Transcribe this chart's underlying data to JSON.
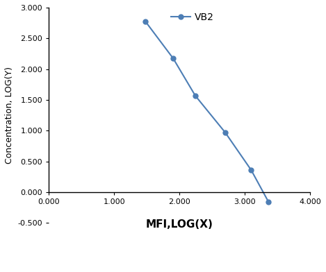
{
  "x": [
    1.477,
    1.903,
    2.243,
    2.699,
    3.097,
    3.362
  ],
  "y": [
    2.778,
    2.176,
    1.568,
    0.973,
    0.362,
    -0.155
  ],
  "line_color": "#4d7eb5",
  "marker_color": "#4d7eb5",
  "marker_style": "o",
  "marker_size": 5,
  "line_width": 1.5,
  "legend_label": "VB2",
  "xlabel": "MFI,LOG(X)",
  "ylabel": "Concentration, LOG(Y)",
  "xlim": [
    0.0,
    4.0
  ],
  "ylim": [
    -0.5,
    3.0
  ],
  "xticks": [
    0.0,
    1.0,
    2.0,
    3.0,
    4.0
  ],
  "yticks": [
    -0.5,
    0.0,
    0.5,
    1.0,
    1.5,
    2.0,
    2.5,
    3.0
  ],
  "xlabel_fontsize": 11,
  "ylabel_fontsize": 9,
  "tick_fontsize": 8,
  "legend_fontsize": 10,
  "bg_color": "#ffffff"
}
